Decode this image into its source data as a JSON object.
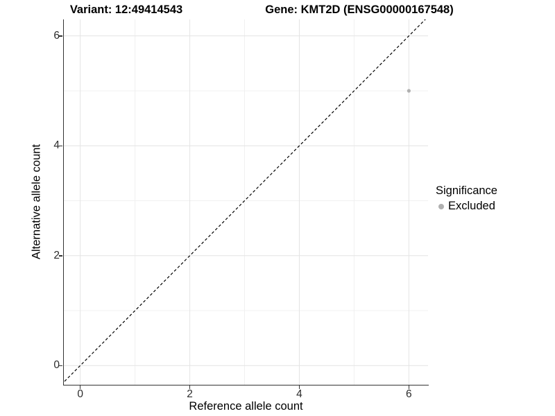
{
  "header": {
    "title_left": "Variant: 12:49414543",
    "title_right": "Gene: KMT2D (ENSG00000167548)"
  },
  "chart_data": {
    "type": "scatter",
    "title_left": "Variant: 12:49414543",
    "title_right": "Gene: KMT2D (ENSG00000167548)",
    "xlabel": "Reference allele count",
    "ylabel": "Alternative allele count",
    "xlim": [
      -0.3,
      6.35
    ],
    "ylim": [
      -0.35,
      6.3
    ],
    "x_ticks": [
      0,
      2,
      4,
      6
    ],
    "y_ticks": [
      0,
      2,
      4,
      6
    ],
    "x_minor": [
      1,
      3,
      5
    ],
    "y_minor": [
      1,
      3,
      5
    ],
    "grid": true,
    "series": [
      {
        "name": "Excluded",
        "color": "#b0b0b0",
        "points": [
          {
            "x": 6,
            "y": 5
          }
        ]
      }
    ],
    "reference_line": {
      "type": "identity",
      "style": "dashed",
      "color": "#000000"
    },
    "legend": {
      "title": "Significance",
      "position": "right",
      "entries": [
        {
          "label": "Excluded",
          "color": "#b0b0b0"
        }
      ]
    }
  },
  "colors": {
    "background": "#ffffff",
    "axis": "#333333",
    "grid_major": "#e4e4e4",
    "grid_minor": "#f0f0f0",
    "point": "#b0b0b0",
    "text": "#000000"
  }
}
